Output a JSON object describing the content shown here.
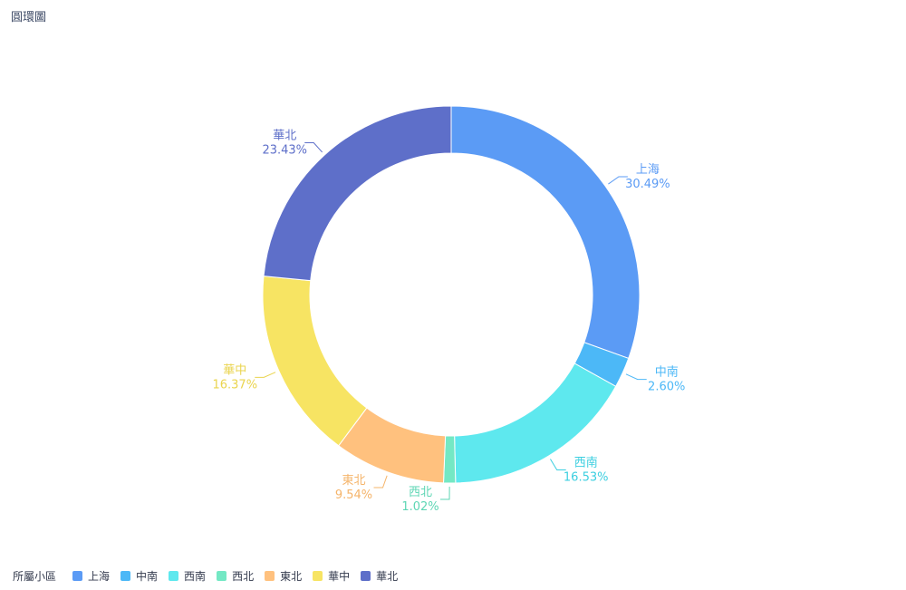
{
  "title": "圓環圖",
  "legend": {
    "title": "所屬小區"
  },
  "chart_data": {
    "type": "pie",
    "variant": "donut",
    "title": "圓環圖",
    "legend_title": "所屬小區",
    "legend_position": "bottom-left",
    "categories": [
      "上海",
      "中南",
      "西南",
      "西北",
      "東北",
      "華中",
      "華北"
    ],
    "values": [
      30.49,
      2.6,
      16.53,
      1.02,
      9.54,
      16.37,
      23.43
    ],
    "labels": [
      "30.49%",
      "2.60%",
      "16.53%",
      "1.02%",
      "9.54%",
      "16.37%",
      "23.43%"
    ],
    "colors": [
      "#5B9BF5",
      "#4CB8F7",
      "#5EE8EE",
      "#74E8C4",
      "#FFC17E",
      "#F7E463",
      "#5E6FC9"
    ],
    "label_colors": [
      "#5B9BF5",
      "#4CB8F7",
      "#3CCFE0",
      "#5ED6B4",
      "#F5B46A",
      "#EAD44E",
      "#5E6FC9"
    ]
  }
}
